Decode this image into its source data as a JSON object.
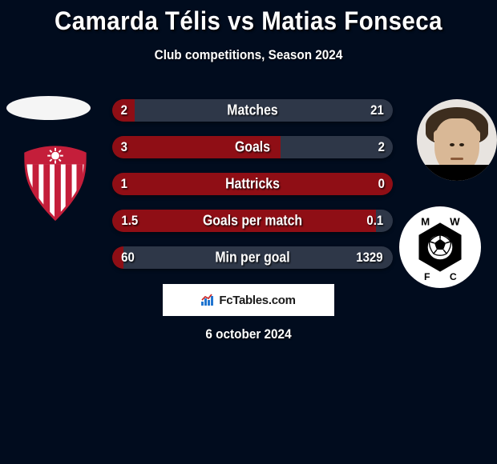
{
  "title": "Camarda Télis vs Matias Fonseca",
  "subtitle": "Club competitions, Season 2024",
  "date": "6 october 2024",
  "fctables_label": "FcTables.com",
  "colors": {
    "left_bar": "#8f0e15",
    "right_bar": "#2e3748",
    "bg": "#010c1e"
  },
  "bars": [
    {
      "label": "Matches",
      "left": "2",
      "right": "21",
      "left_pct": 8,
      "right_pct": 92
    },
    {
      "label": "Goals",
      "left": "3",
      "right": "2",
      "left_pct": 60,
      "right_pct": 40
    },
    {
      "label": "Hattricks",
      "left": "1",
      "right": "0",
      "left_pct": 100,
      "right_pct": 0
    },
    {
      "label": "Goals per match",
      "left": "1.5",
      "right": "0.1",
      "left_pct": 94,
      "right_pct": 6
    },
    {
      "label": "Min per goal",
      "left": "60",
      "right": "1329",
      "left_pct": 4,
      "right_pct": 96
    }
  ],
  "badge_left": {
    "stripe_color": "#c41e3a",
    "burst_color": "#c41e3a"
  },
  "badge_right": {
    "ring_text": "MW FC",
    "hex_color": "#000000"
  }
}
